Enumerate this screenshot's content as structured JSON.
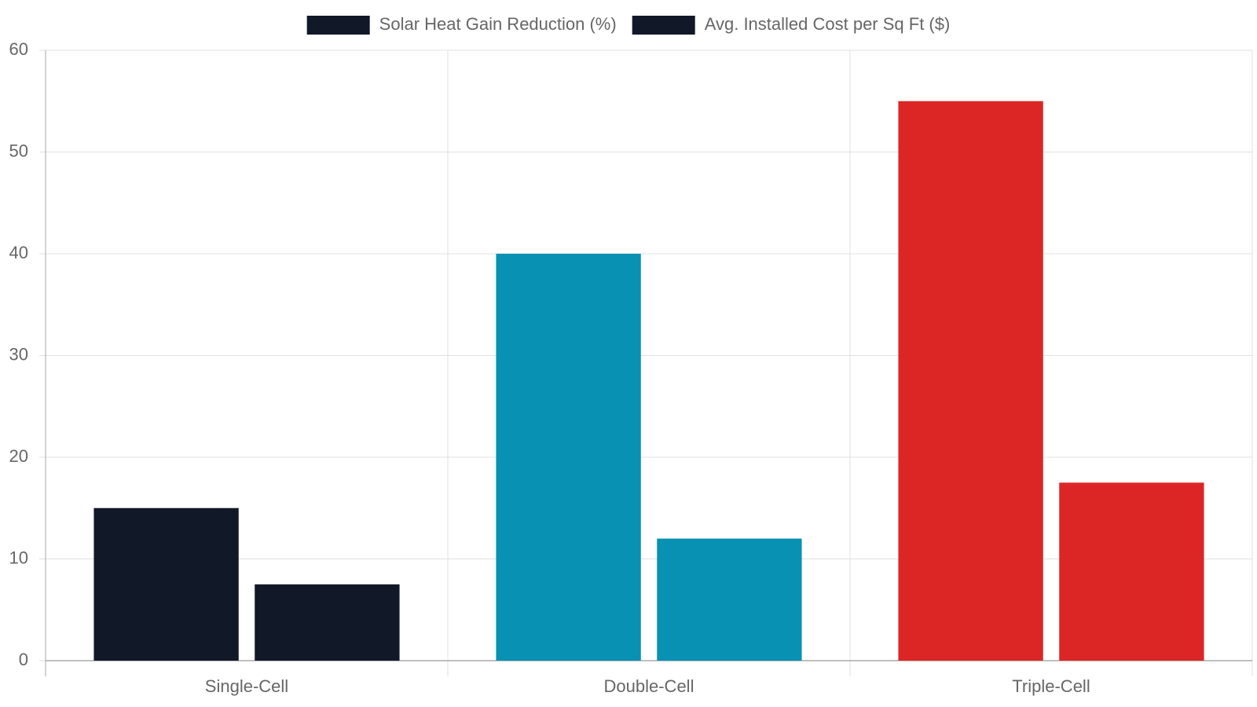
{
  "chart_data": {
    "type": "bar",
    "categories": [
      "Single-Cell",
      "Double-Cell",
      "Triple-Cell"
    ],
    "series": [
      {
        "name": "Solar Heat Gain Reduction (%)",
        "colors": [
          "#111827",
          "#0891b2",
          "#dc2626"
        ],
        "values": [
          15,
          40,
          55
        ]
      },
      {
        "name": "Avg. Installed Cost per Sq Ft ($)",
        "colors": [
          "#111827",
          "#0891b2",
          "#dc2626"
        ],
        "values": [
          7.5,
          12,
          17.5
        ]
      }
    ],
    "ylim": [
      0,
      60
    ],
    "yticks": [
      0,
      10,
      20,
      30,
      40,
      50,
      60
    ],
    "grid": true,
    "legend": "top"
  }
}
